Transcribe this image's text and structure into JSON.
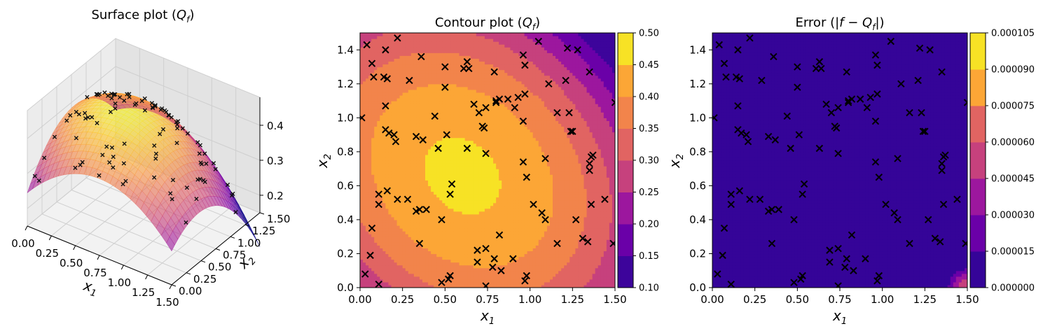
{
  "chart_data": [
    {
      "type": "surface",
      "title": "Surface plot (Q_f)",
      "title_parts": {
        "prefix": "Surface plot (",
        "symbol": "Q",
        "sub": "f",
        "suffix": ")"
      },
      "xlabel": {
        "base": "x",
        "sub": "1"
      },
      "ylabel": {
        "base": "x",
        "sub": "2"
      },
      "xlim": [
        0,
        1.5
      ],
      "ylim": [
        0,
        1.5
      ],
      "zlim": [
        0.15,
        0.48
      ],
      "x_ticks": [
        "0.00",
        "0.25",
        "0.50",
        "0.75",
        "1.00",
        "1.25",
        "1.50"
      ],
      "y_ticks": [
        "0.00",
        "0.25",
        "0.50",
        "0.75",
        "1.00",
        "1.25",
        "1.50"
      ],
      "z_ticks": [
        "0.2",
        "0.3",
        "0.4"
      ],
      "colormap": "plasma",
      "marker": "x",
      "marker_color": "#000000"
    },
    {
      "type": "contour",
      "title": "Contour plot (Q_f)",
      "title_parts": {
        "prefix": "Contour plot (",
        "symbol": "Q",
        "sub": "f",
        "suffix": ")"
      },
      "xlabel": {
        "base": "x",
        "sub": "1"
      },
      "ylabel": {
        "base": "x",
        "sub": "2"
      },
      "xlim": [
        0,
        1.5
      ],
      "ylim": [
        0,
        1.5
      ],
      "x_ticks": [
        "0.00",
        "0.25",
        "0.50",
        "0.75",
        "1.00",
        "1.25",
        "1.50"
      ],
      "y_ticks": [
        "0.0",
        "0.2",
        "0.4",
        "0.6",
        "0.8",
        "1.0",
        "1.2",
        "1.4"
      ],
      "levels": [
        0.1,
        0.15,
        0.2,
        0.25,
        0.3,
        0.35,
        0.4,
        0.45,
        0.5
      ],
      "colorbar_ticks": [
        "0.10",
        "0.15",
        "0.20",
        "0.25",
        "0.30",
        "0.35",
        "0.40",
        "0.45",
        "0.50"
      ],
      "level_colors": [
        "#3d049b",
        "#6a00a8",
        "#9c179e",
        "#c6417d",
        "#e16462",
        "#f2844b",
        "#fca636",
        "#f7e225"
      ],
      "center": [
        0.65,
        0.65
      ],
      "colormap": "plasma",
      "marker": "x"
    },
    {
      "type": "contour",
      "title": "Error (|f - Q_f|)",
      "title_parts": {
        "prefix": "Error (|",
        "f": "f",
        "minus": " − ",
        "symbol": "Q",
        "sub": "f",
        "suffix": "|)"
      },
      "xlabel": {
        "base": "x",
        "sub": "1"
      },
      "ylabel": {
        "base": "x",
        "sub": "2"
      },
      "xlim": [
        0,
        1.5
      ],
      "ylim": [
        0,
        1.5
      ],
      "x_ticks": [
        "0.00",
        "0.25",
        "0.50",
        "0.75",
        "1.00",
        "1.25",
        "1.50"
      ],
      "y_ticks": [
        "0.0",
        "0.2",
        "0.4",
        "0.6",
        "0.8",
        "1.0",
        "1.2",
        "1.4"
      ],
      "levels": [
        0.0,
        1.5e-05,
        3e-05,
        4.5e-05,
        6e-05,
        7.5e-05,
        9e-05,
        0.000105
      ],
      "colorbar_ticks": [
        "0.000000",
        "0.000015",
        "0.000030",
        "0.000045",
        "0.000060",
        "0.000075",
        "0.000090",
        "0.000105"
      ],
      "level_colors": [
        "#350498",
        "#6a00a8",
        "#9c179e",
        "#c6417d",
        "#e16462",
        "#fca636",
        "#f7e225"
      ],
      "colormap": "plasma",
      "marker": "x"
    }
  ],
  "sample_points": [
    [
      0.04,
      1.43
    ],
    [
      0.15,
      1.4
    ],
    [
      0.22,
      1.47
    ],
    [
      0.36,
      1.36
    ],
    [
      0.07,
      1.32
    ],
    [
      0.14,
      1.24
    ],
    [
      0.16,
      1.23
    ],
    [
      0.08,
      1.24
    ],
    [
      0.29,
      1.22
    ],
    [
      0.5,
      1.3
    ],
    [
      0.61,
      1.29
    ],
    [
      0.63,
      1.33
    ],
    [
      0.64,
      1.29
    ],
    [
      0.79,
      1.27
    ],
    [
      0.96,
      1.37
    ],
    [
      0.97,
      1.31
    ],
    [
      1.05,
      1.45
    ],
    [
      1.22,
      1.41
    ],
    [
      1.28,
      1.4
    ],
    [
      0.5,
      1.18
    ],
    [
      0.15,
      1.07
    ],
    [
      0.97,
      1.14
    ],
    [
      0.93,
      1.12
    ],
    [
      0.87,
      1.11
    ],
    [
      0.8,
      1.1
    ],
    [
      0.82,
      1.11
    ],
    [
      0.8,
      1.09
    ],
    [
      1.11,
      1.2
    ],
    [
      1.21,
      1.22
    ],
    [
      1.35,
      1.27
    ],
    [
      0.67,
      1.08
    ],
    [
      0.01,
      1.0
    ],
    [
      0.44,
      1.01
    ],
    [
      0.7,
      1.03
    ],
    [
      0.74,
      1.06
    ],
    [
      0.91,
      1.06
    ],
    [
      0.96,
      0.98
    ],
    [
      1.16,
      1.03
    ],
    [
      1.23,
      1.03
    ],
    [
      1.24,
      0.92
    ],
    [
      1.25,
      0.92
    ],
    [
      1.5,
      1.09
    ],
    [
      0.15,
      0.93
    ],
    [
      0.17,
      0.91
    ],
    [
      0.2,
      0.9
    ],
    [
      0.21,
      0.86
    ],
    [
      0.33,
      0.89
    ],
    [
      0.37,
      0.87
    ],
    [
      0.51,
      0.9
    ],
    [
      0.72,
      0.95
    ],
    [
      0.73,
      0.94
    ],
    [
      0.46,
      0.82
    ],
    [
      0.63,
      0.82
    ],
    [
      0.74,
      0.79
    ],
    [
      0.96,
      0.74
    ],
    [
      1.09,
      0.76
    ],
    [
      1.37,
      0.78
    ],
    [
      1.36,
      0.77
    ],
    [
      1.35,
      0.73
    ],
    [
      1.35,
      0.69
    ],
    [
      0.98,
      0.65
    ],
    [
      0.54,
      0.61
    ],
    [
      0.11,
      0.55
    ],
    [
      0.16,
      0.57
    ],
    [
      0.53,
      0.55
    ],
    [
      0.22,
      0.52
    ],
    [
      0.28,
      0.52
    ],
    [
      1.44,
      0.52
    ],
    [
      0.11,
      0.49
    ],
    [
      1.02,
      0.49
    ],
    [
      1.36,
      0.49
    ],
    [
      0.33,
      0.45
    ],
    [
      0.35,
      0.46
    ],
    [
      0.39,
      0.46
    ],
    [
      1.07,
      0.44
    ],
    [
      0.48,
      0.4
    ],
    [
      1.09,
      0.4
    ],
    [
      1.27,
      0.4
    ],
    [
      0.07,
      0.35
    ],
    [
      0.82,
      0.31
    ],
    [
      1.31,
      0.29
    ],
    [
      1.34,
      0.27
    ],
    [
      0.35,
      0.26
    ],
    [
      1.49,
      0.26
    ],
    [
      1.16,
      0.26
    ],
    [
      0.74,
      0.23
    ],
    [
      0.69,
      0.22
    ],
    [
      0.06,
      0.19
    ],
    [
      0.69,
      0.15
    ],
    [
      0.79,
      0.17
    ],
    [
      0.9,
      0.17
    ],
    [
      0.78,
      0.12
    ],
    [
      0.83,
      0.1
    ],
    [
      0.03,
      0.08
    ],
    [
      0.53,
      0.07
    ],
    [
      0.52,
      0.05
    ],
    [
      0.98,
      0.07
    ],
    [
      0.97,
      0.04
    ],
    [
      0.48,
      0.03
    ],
    [
      0.11,
      0.02
    ],
    [
      0.74,
      0.01
    ]
  ]
}
